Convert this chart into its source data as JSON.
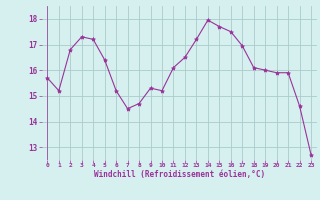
{
  "x": [
    0,
    1,
    2,
    3,
    4,
    5,
    6,
    7,
    8,
    9,
    10,
    11,
    12,
    13,
    14,
    15,
    16,
    17,
    18,
    19,
    20,
    21,
    22,
    23
  ],
  "y": [
    15.7,
    15.2,
    16.8,
    17.3,
    17.2,
    16.4,
    15.2,
    14.5,
    14.7,
    15.3,
    15.2,
    16.1,
    16.5,
    17.2,
    17.95,
    17.7,
    17.5,
    16.95,
    16.1,
    16.0,
    15.9,
    15.9,
    14.6,
    12.7
  ],
  "line_color": "#993399",
  "marker": "*",
  "marker_size": 3,
  "bg_color": "#d6f0f0",
  "grid_color": "#aacccc",
  "xlabel": "Windchill (Refroidissement éolien,°C)",
  "xlabel_color": "#993399",
  "tick_color": "#993399",
  "ylim": [
    12.5,
    18.5
  ],
  "yticks": [
    13,
    14,
    15,
    16,
    17,
    18
  ],
  "xticks": [
    0,
    1,
    2,
    3,
    4,
    5,
    6,
    7,
    8,
    9,
    10,
    11,
    12,
    13,
    14,
    15,
    16,
    17,
    18,
    19,
    20,
    21,
    22,
    23
  ],
  "xlim": [
    -0.5,
    23.5
  ]
}
